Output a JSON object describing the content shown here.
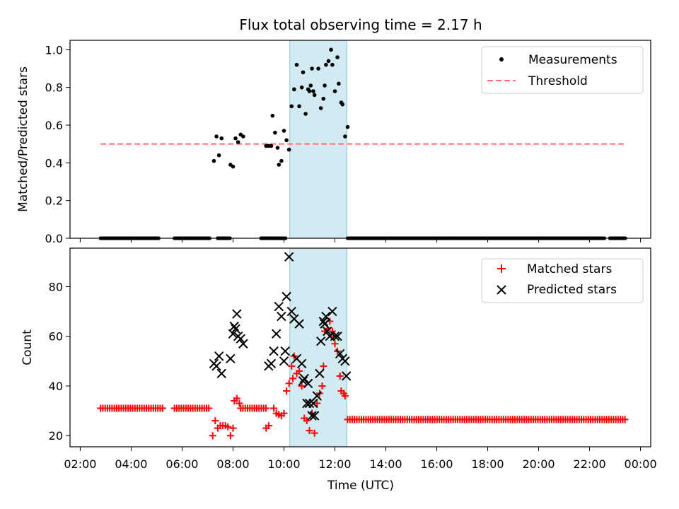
{
  "figure": {
    "title": "Flux total observing time = 2.17 h",
    "xlabel": "Time (UTC)",
    "x_ticks": [
      "02:00",
      "04:00",
      "06:00",
      "08:00",
      "10:00",
      "12:00",
      "14:00",
      "16:00",
      "18:00",
      "20:00",
      "22:00",
      "00:00"
    ],
    "highlight_span_hours": [
      10.23,
      12.47
    ],
    "highlight_color": "#add8e6"
  },
  "chart_data": [
    {
      "type": "scatter",
      "ylabel": "Matched/Predicted stars",
      "xlim_hours": [
        1.6,
        24.4
      ],
      "ylim": [
        0,
        1.05
      ],
      "y_ticks": [
        "0.0",
        "0.2",
        "0.4",
        "0.6",
        "0.8",
        "1.0"
      ],
      "legend_position": "upper right",
      "series": [
        {
          "name": "Measurements",
          "color": "#000000",
          "marker": "dot",
          "points": [
            [
              7.25,
              0.41
            ],
            [
              7.35,
              0.54
            ],
            [
              7.45,
              0.44
            ],
            [
              7.55,
              0.53
            ],
            [
              7.9,
              0.39
            ],
            [
              8.0,
              0.38
            ],
            [
              8.1,
              0.53
            ],
            [
              8.2,
              0.51
            ],
            [
              8.3,
              0.55
            ],
            [
              8.4,
              0.54
            ],
            [
              9.3,
              0.49
            ],
            [
              9.4,
              0.49
            ],
            [
              9.5,
              0.49
            ],
            [
              9.55,
              0.65
            ],
            [
              9.65,
              0.56
            ],
            [
              9.75,
              0.48
            ],
            [
              9.8,
              0.39
            ],
            [
              9.9,
              0.41
            ],
            [
              10.0,
              0.57
            ],
            [
              10.1,
              0.52
            ],
            [
              10.2,
              0.47
            ],
            [
              10.3,
              0.7
            ],
            [
              10.4,
              0.79
            ],
            [
              10.5,
              0.92
            ],
            [
              10.6,
              0.7
            ],
            [
              10.7,
              0.8
            ],
            [
              10.75,
              0.88
            ],
            [
              10.85,
              0.66
            ],
            [
              10.95,
              0.79
            ],
            [
              11.0,
              0.78
            ],
            [
              11.05,
              0.81
            ],
            [
              11.1,
              0.9
            ],
            [
              11.15,
              0.78
            ],
            [
              11.2,
              0.76
            ],
            [
              11.35,
              0.9
            ],
            [
              11.45,
              0.69
            ],
            [
              11.55,
              0.74
            ],
            [
              11.6,
              0.81
            ],
            [
              11.65,
              0.92
            ],
            [
              11.75,
              0.94
            ],
            [
              11.85,
              1.0
            ],
            [
              11.9,
              0.92
            ],
            [
              12.0,
              0.78
            ],
            [
              12.1,
              0.96
            ],
            [
              12.15,
              0.82
            ],
            [
              12.25,
              0.72
            ],
            [
              12.3,
              0.71
            ],
            [
              12.4,
              0.54
            ],
            [
              12.5,
              0.59
            ]
          ],
          "zero_runs_hours": [
            [
              2.8,
              5.1
            ],
            [
              5.7,
              7.1
            ],
            [
              7.4,
              7.9
            ],
            [
              9.1,
              10.1
            ],
            [
              12.5,
              22.6
            ],
            [
              22.8,
              23.4
            ]
          ]
        },
        {
          "name": "Threshold",
          "color": "#ff7070",
          "style": "dashed",
          "value": 0.5,
          "x_range_hours": [
            2.8,
            23.4
          ]
        }
      ]
    },
    {
      "type": "scatter",
      "ylabel": "Count",
      "xlim_hours": [
        1.6,
        24.4
      ],
      "ylim": [
        15.5,
        95.5
      ],
      "y_ticks": [
        "20",
        "40",
        "60",
        "80"
      ],
      "legend_position": "upper right",
      "series": [
        {
          "name": "Matched stars",
          "color": "#ff0000",
          "marker": "plus",
          "runs": [
            {
              "x_hours": [
                2.8,
                5.3
              ],
              "value": 31
            },
            {
              "x_hours": [
                5.7,
                7.1
              ],
              "value": 31
            },
            {
              "x_hours": [
                8.3,
                9.3
              ],
              "value": 31
            },
            {
              "x_hours": [
                12.5,
                23.4
              ],
              "value": 26.5
            }
          ],
          "points": [
            [
              7.2,
              20
            ],
            [
              7.3,
              26
            ],
            [
              7.4,
              23
            ],
            [
              7.5,
              24
            ],
            [
              7.6,
              24
            ],
            [
              7.7,
              24
            ],
            [
              7.8,
              23.5
            ],
            [
              7.9,
              20
            ],
            [
              8.0,
              23
            ],
            [
              8.05,
              34
            ],
            [
              8.15,
              35
            ],
            [
              8.25,
              33
            ],
            [
              9.3,
              23
            ],
            [
              9.4,
              24
            ],
            [
              9.6,
              31
            ],
            [
              9.7,
              29
            ],
            [
              9.8,
              28.5
            ],
            [
              9.9,
              28
            ],
            [
              10.0,
              29
            ],
            [
              10.1,
              38
            ],
            [
              10.2,
              41
            ],
            [
              10.3,
              48
            ],
            [
              10.35,
              43
            ],
            [
              10.4,
              52
            ],
            [
              10.5,
              45
            ],
            [
              10.6,
              46
            ],
            [
              10.7,
              40
            ],
            [
              10.8,
              27
            ],
            [
              10.9,
              26
            ],
            [
              11.0,
              22
            ],
            [
              11.1,
              29
            ],
            [
              11.2,
              21
            ],
            [
              11.3,
              33
            ],
            [
              11.4,
              37
            ],
            [
              11.5,
              40
            ],
            [
              11.55,
              48
            ],
            [
              11.6,
              62
            ],
            [
              11.7,
              63
            ],
            [
              11.8,
              66
            ],
            [
              11.9,
              62
            ],
            [
              11.95,
              60
            ],
            [
              12.0,
              57
            ],
            [
              12.1,
              54
            ],
            [
              12.2,
              44
            ],
            [
              12.25,
              38
            ],
            [
              12.35,
              37
            ],
            [
              12.4,
              36
            ]
          ]
        },
        {
          "name": "Predicted stars",
          "color": "#000000",
          "marker": "x",
          "points": [
            [
              7.25,
              49
            ],
            [
              7.35,
              48
            ],
            [
              7.45,
              52
            ],
            [
              7.55,
              45
            ],
            [
              7.9,
              51
            ],
            [
              8.0,
              61
            ],
            [
              8.05,
              64
            ],
            [
              8.1,
              63
            ],
            [
              8.15,
              69
            ],
            [
              8.2,
              60
            ],
            [
              8.3,
              59
            ],
            [
              8.4,
              57
            ],
            [
              9.4,
              48
            ],
            [
              9.5,
              49
            ],
            [
              9.6,
              54
            ],
            [
              9.7,
              61
            ],
            [
              9.8,
              72
            ],
            [
              9.9,
              68
            ],
            [
              10.0,
              50
            ],
            [
              10.05,
              54
            ],
            [
              10.1,
              76
            ],
            [
              10.2,
              92
            ],
            [
              10.3,
              70
            ],
            [
              10.4,
              67
            ],
            [
              10.5,
              51
            ],
            [
              10.6,
              65
            ],
            [
              10.7,
              49
            ],
            [
              10.75,
              42
            ],
            [
              10.8,
              43
            ],
            [
              10.9,
              33
            ],
            [
              10.95,
              41
            ],
            [
              11.0,
              33
            ],
            [
              11.1,
              28
            ],
            [
              11.15,
              33
            ],
            [
              11.2,
              28
            ],
            [
              11.3,
              36
            ],
            [
              11.4,
              45
            ],
            [
              11.45,
              58
            ],
            [
              11.55,
              66
            ],
            [
              11.6,
              65
            ],
            [
              11.65,
              68
            ],
            [
              11.7,
              62
            ],
            [
              11.8,
              60
            ],
            [
              11.9,
              70
            ],
            [
              12.0,
              60
            ],
            [
              12.1,
              60
            ],
            [
              12.2,
              53
            ],
            [
              12.3,
              51
            ],
            [
              12.4,
              50
            ],
            [
              12.45,
              44
            ]
          ]
        }
      ]
    }
  ]
}
